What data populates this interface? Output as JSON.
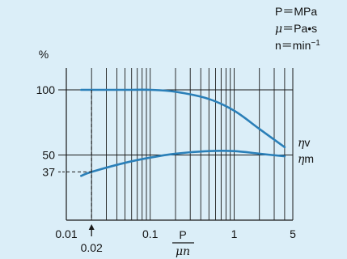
{
  "colors": {
    "background": "#dbeef8",
    "curve": "#2a7fb8",
    "grid": "#1a1a1a",
    "text": "#111111"
  },
  "legend": {
    "pressure_sym": "P",
    "pressure_unit": "MPa",
    "viscosity_sym": "μ",
    "viscosity_unit": "Pa•s",
    "speed_sym": "n",
    "speed_unit": "min",
    "speed_unit_sup": "−1",
    "equals": "＝"
  },
  "chart_data": {
    "type": "line",
    "x_scale": "log",
    "y_scale": "linear",
    "xlim": [
      0.01,
      5
    ],
    "ylim": [
      0,
      100
    ],
    "xlabel_numerator": "P",
    "xlabel_denominator": "μn",
    "ylabel": "%",
    "x_ticks": [
      {
        "value": 0.01,
        "label": "0.01"
      },
      {
        "value": 0.1,
        "label": "0.1"
      },
      {
        "value": 1,
        "label": "1"
      },
      {
        "value": 5,
        "label": "5"
      }
    ],
    "y_ticks": [
      {
        "value": 100,
        "label": "100"
      },
      {
        "value": 50,
        "label": "50"
      },
      {
        "value": 37,
        "label": "37"
      }
    ],
    "marker": {
      "x": 0.02,
      "label": "0.02"
    },
    "grid": true,
    "series": [
      {
        "name": "ηv",
        "points": [
          [
            0.015,
            100
          ],
          [
            0.05,
            100
          ],
          [
            0.1,
            100
          ],
          [
            0.2,
            98.5
          ],
          [
            0.5,
            93
          ],
          [
            1,
            84
          ],
          [
            2,
            70
          ],
          [
            4,
            56
          ]
        ]
      },
      {
        "name": "ηm",
        "points": [
          [
            0.015,
            34
          ],
          [
            0.02,
            37
          ],
          [
            0.05,
            44
          ],
          [
            0.1,
            48
          ],
          [
            0.2,
            51
          ],
          [
            0.5,
            53
          ],
          [
            1,
            53
          ],
          [
            2,
            51
          ],
          [
            4,
            49
          ]
        ]
      }
    ]
  }
}
